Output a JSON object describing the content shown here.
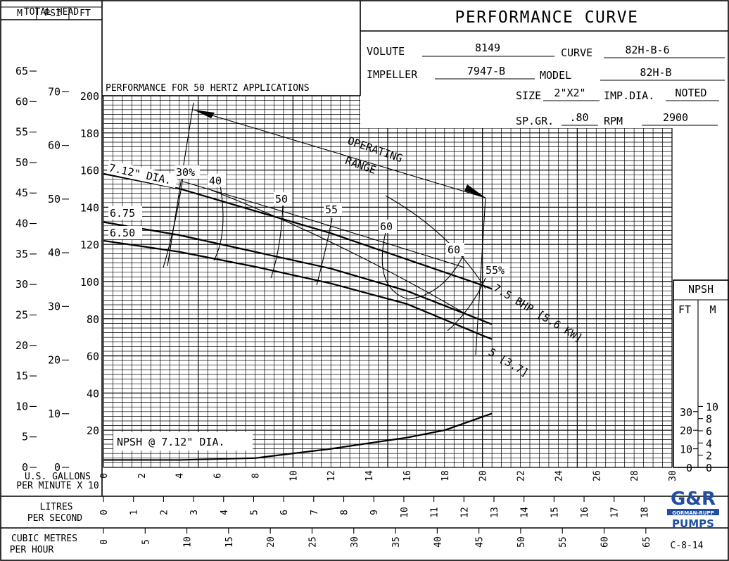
{
  "header": {
    "title": "PERFORMANCE CURVE",
    "volute_label": "VOLUTE",
    "volute_value": "8149",
    "curve_label": "CURVE",
    "curve_value": "82H-B-6",
    "impeller_label": "IMPELLER",
    "impeller_value": "7947-B",
    "model_label": "MODEL",
    "model_value": "82H-B",
    "size_label": "SIZE",
    "size_value": "2\"X2\"",
    "impdia_label": "IMP.DIA.",
    "impdia_value": "NOTED",
    "spgr_label": "SP.GR.",
    "spgr_value": ".80",
    "rpm_label": "RPM",
    "rpm_value": "2900"
  },
  "left_axis": {
    "title": "TOTAL HEAD",
    "m_label": "M",
    "psi_label": "PSI",
    "ft_label": "FT",
    "m_ticks": [
      "0",
      "5",
      "10",
      "15",
      "20",
      "25",
      "30",
      "35",
      "40",
      "45",
      "50",
      "55",
      "60",
      "65"
    ],
    "psi_ticks": [
      "0",
      "10",
      "20",
      "30",
      "40",
      "50",
      "60",
      "70"
    ],
    "ft_ticks": [
      "20",
      "40",
      "60",
      "80",
      "100",
      "120",
      "140",
      "160",
      "180",
      "200"
    ]
  },
  "npsh_axis": {
    "title": "NPSH",
    "ft_label": "FT",
    "m_label": "M",
    "ft_ticks": [
      "0",
      "10",
      "20",
      "30"
    ],
    "m_ticks": [
      "0",
      "2",
      "4",
      "6",
      "8",
      "10"
    ]
  },
  "bottom_axes": {
    "gpm_label_1": "U.S. GALLONS",
    "gpm_label_2": "PER MINUTE X 10",
    "gpm_ticks": [
      "0",
      "2",
      "4",
      "6",
      "8",
      "10",
      "12",
      "14",
      "16",
      "18",
      "20",
      "22",
      "24",
      "26",
      "28",
      "30"
    ],
    "lps_label_1": "LITRES",
    "lps_label_2": "PER SECOND",
    "lps_ticks": [
      "0",
      "1",
      "2",
      "3",
      "4",
      "5",
      "6",
      "7",
      "8",
      "9",
      "10",
      "11",
      "12",
      "13",
      "14",
      "15",
      "16",
      "17",
      "18"
    ],
    "cmh_label_1": "CUBIC METRES",
    "cmh_label_2": "PER HOUR",
    "cmh_ticks": [
      "0",
      "5",
      "10",
      "15",
      "20",
      "25",
      "30",
      "35",
      "40",
      "45",
      "50",
      "55",
      "60",
      "65"
    ]
  },
  "annotations": {
    "subtitle": "PERFORMANCE FOR 50 HERTZ APPLICATIONS",
    "operating_1": "OPERATING",
    "operating_2": "RANGE",
    "npsh_label": "NPSH @ 7.12\" DIA.",
    "bhp_75": "7.5 BHP [5.6 KW]",
    "bhp_5": "5 [3.7]",
    "code": "C-8-14"
  },
  "logo": {
    "top": "G&R",
    "middle": "GORMAN-RUPP",
    "bottom": "PUMPS"
  },
  "chart_data": {
    "type": "line",
    "title": "PERFORMANCE CURVE",
    "subtitle": "PERFORMANCE FOR 50 HERTZ APPLICATIONS",
    "xlabel": "U.S. GALLONS PER MINUTE X 10",
    "ylabel": "TOTAL HEAD FT",
    "xlim": [
      0,
      30
    ],
    "ylim": [
      0,
      200
    ],
    "grid": true,
    "series": [
      {
        "name": "7.12\" DIA.",
        "x": [
          0,
          4,
          8,
          12,
          16,
          20,
          20.5
        ],
        "y": [
          158,
          150,
          138,
          126,
          112,
          98,
          96
        ]
      },
      {
        "name": "6.75",
        "x": [
          0,
          4,
          8,
          12,
          16,
          20,
          20.5
        ],
        "y": [
          132,
          125,
          116,
          107,
          95,
          79,
          77
        ]
      },
      {
        "name": "6.50",
        "x": [
          0,
          4,
          8,
          12,
          16,
          20,
          20.5
        ],
        "y": [
          122,
          116,
          108,
          99,
          88,
          71,
          69
        ]
      },
      {
        "name": "NPSH @ 7.12\" DIA.",
        "x": [
          0,
          4,
          8,
          12,
          16,
          18,
          20.5
        ],
        "y": [
          4,
          4,
          5,
          10,
          16,
          20,
          29
        ]
      }
    ],
    "efficiency_labels": [
      "30%",
      "40",
      "50",
      "55",
      "60",
      "60",
      "55%"
    ],
    "bhp_labels": [
      "7.5 BHP [5.6 KW]",
      "5 [3.7]"
    ],
    "operating_range": [
      "OPERATING",
      "RANGE"
    ]
  }
}
